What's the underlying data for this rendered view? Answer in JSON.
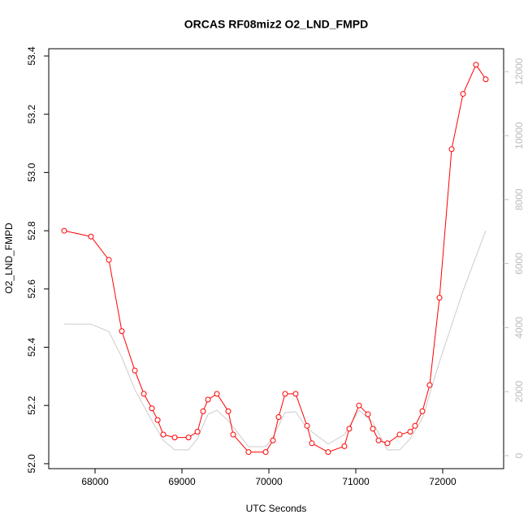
{
  "chart_data": {
    "type": "line",
    "title": "ORCAS RF08miz2 O2_LND_FMPD",
    "x_label": "UTC Seconds",
    "y_label": "O2_LND_FMPD",
    "xlim": [
      67467,
      72701
    ],
    "ylim": [
      51.983,
      53.425
    ],
    "y2lim": [
      -406,
      12716
    ],
    "xticks": [
      68000,
      69000,
      70000,
      71000,
      72000
    ],
    "yticks": [
      {
        "value": 52,
        "label": "52.0"
      },
      52.2,
      52.4,
      52.6,
      52.8,
      {
        "value": 53,
        "label": "53.0"
      },
      53.2,
      53.4
    ],
    "y2ticks": [
      0,
      2000,
      4000,
      6000,
      8000,
      10000,
      12000
    ],
    "series": [
      {
        "color": "#ff0000",
        "markers": true,
        "x": [
          67645,
          67953,
          68159,
          68308,
          68458,
          68561,
          68654,
          68720,
          68785,
          68916,
          69075,
          69178,
          69243,
          69299,
          69402,
          69533,
          69589,
          69766,
          69963,
          70047,
          70112,
          70187,
          70308,
          70439,
          70495,
          70682,
          70869,
          70925,
          71037,
          71140,
          71196,
          71262,
          71364,
          71505,
          71626,
          71682,
          71766,
          71850,
          71963,
          72103,
          72234,
          72383,
          72495
        ],
        "values": [
          52.8,
          52.78,
          52.7,
          52.455,
          52.32,
          52.24,
          52.19,
          52.15,
          52.1,
          52.09,
          52.09,
          52.11,
          52.18,
          52.22,
          52.24,
          52.18,
          52.1,
          52.04,
          52.04,
          52.08,
          52.16,
          52.24,
          52.24,
          52.13,
          52.07,
          52.04,
          52.06,
          52.12,
          52.2,
          52.17,
          52.12,
          52.08,
          52.07,
          52.1,
          52.11,
          52.13,
          52.18,
          52.27,
          52.57,
          53.08,
          53.27,
          53.37,
          53.32
        ]
      },
      {
        "color": "#cccccc",
        "markers": false,
        "axis": "y2",
        "x": [
          67645,
          67953,
          68159,
          68308,
          68458,
          68561,
          68654,
          68785,
          68916,
          69075,
          69178,
          69299,
          69402,
          69533,
          69766,
          69963,
          70047,
          70187,
          70308,
          70439,
          70682,
          70869,
          71037,
          71196,
          71364,
          71505,
          71626,
          71766,
          71963,
          72234,
          72495
        ],
        "values": [
          4110,
          4110,
          3880,
          3070,
          2060,
          1550,
          1090,
          480,
          180,
          180,
          530,
          1290,
          1420,
          1090,
          280,
          280,
          580,
          1350,
          1370,
          860,
          360,
          660,
          1420,
          1040,
          180,
          180,
          530,
          1170,
          2940,
          5150,
          7030
        ]
      }
    ]
  }
}
